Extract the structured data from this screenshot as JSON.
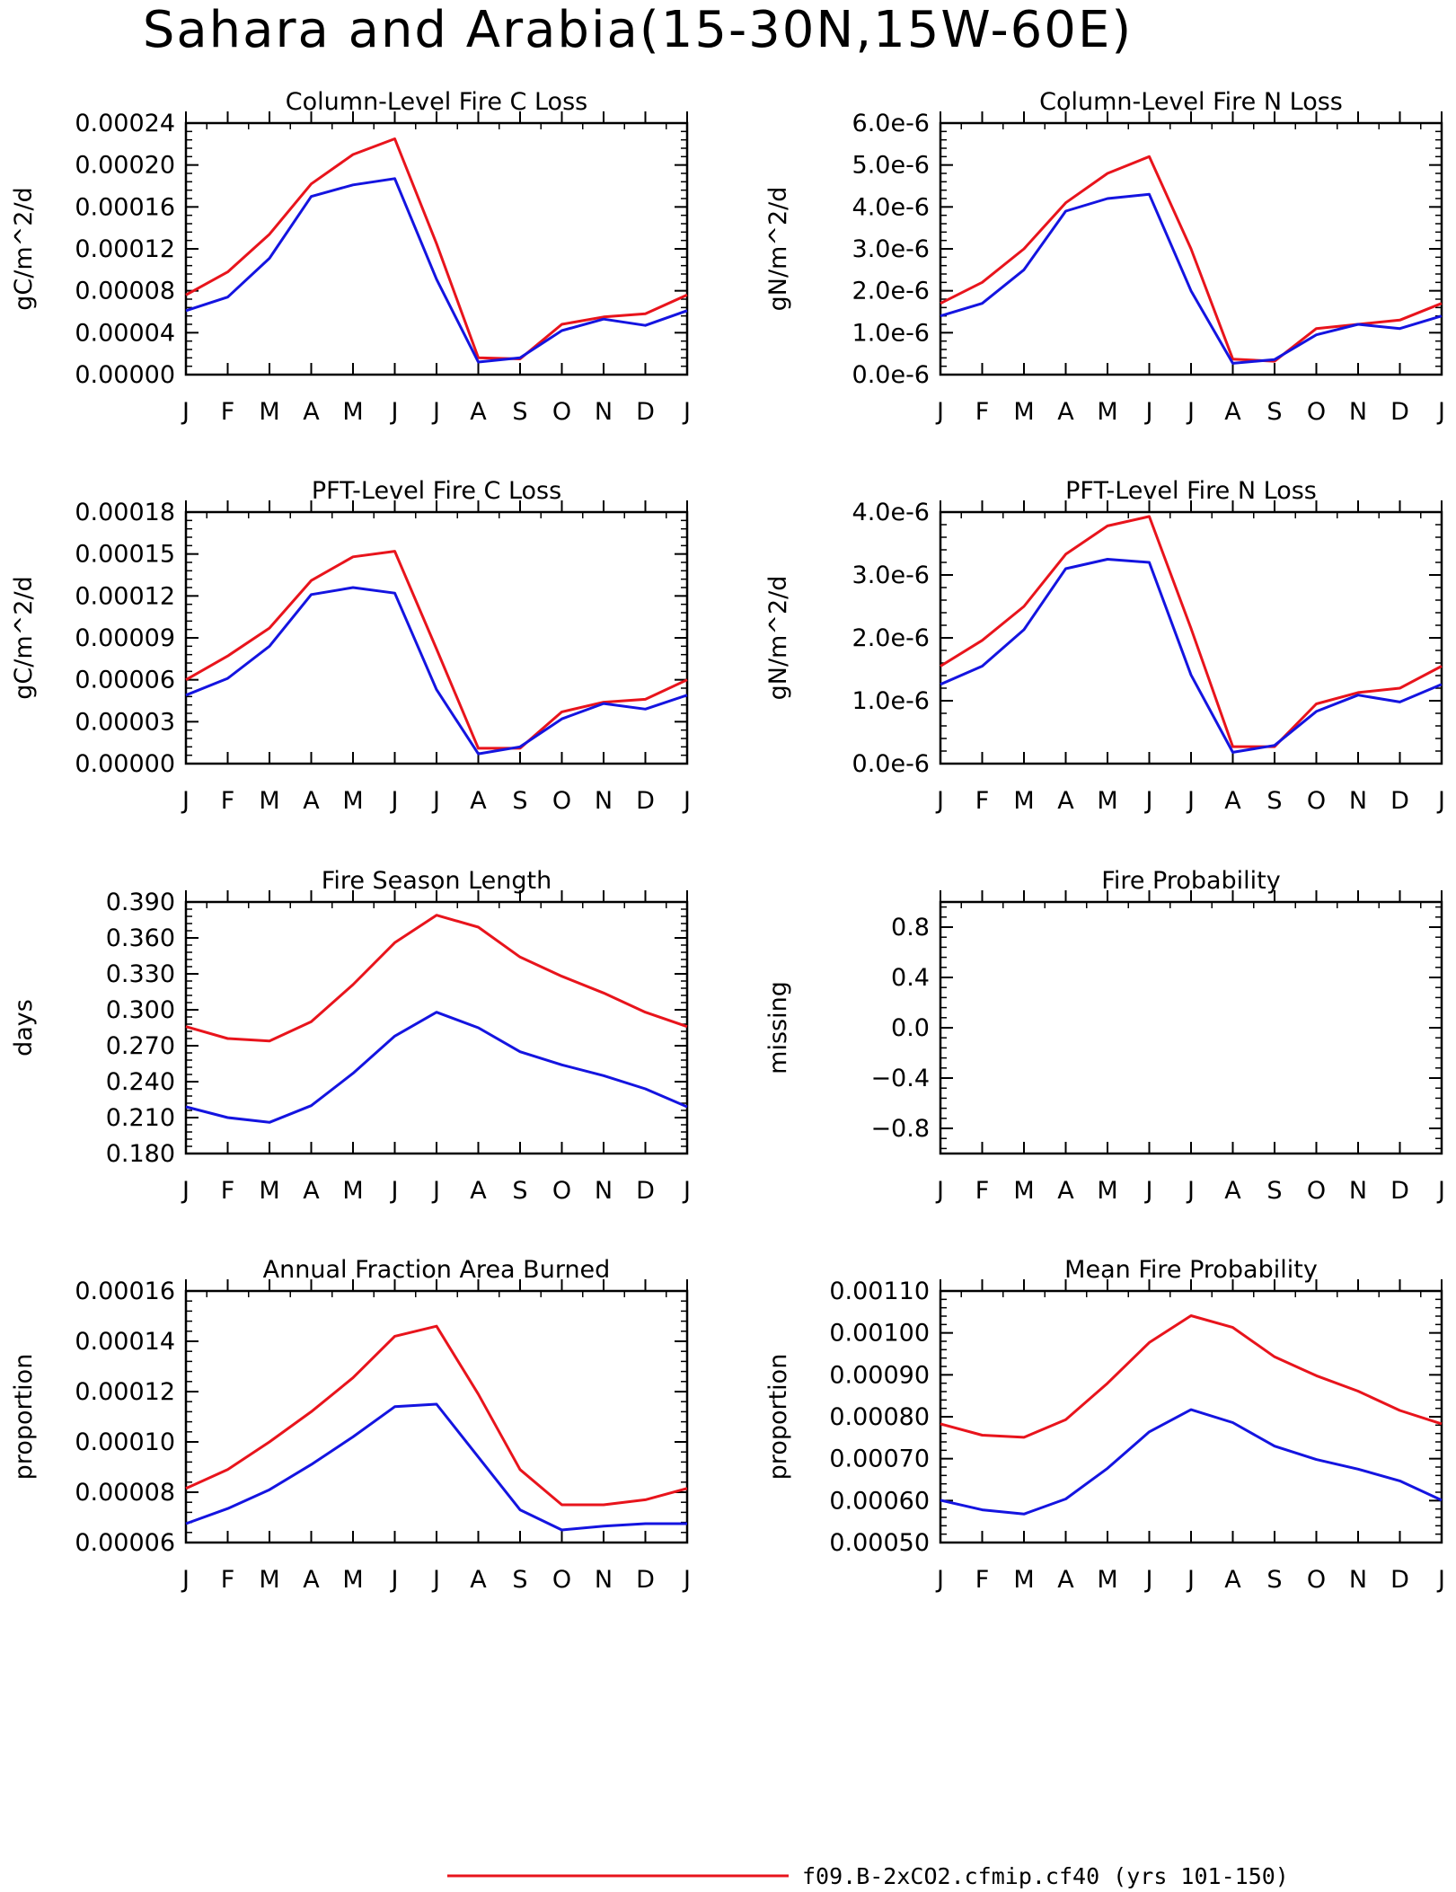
{
  "title": "Sahara and Arabia(15-30N,15W-60E)",
  "colors": {
    "red": "#e8141c",
    "blue": "#1414e0",
    "axes": "#000000"
  },
  "legend": [
    {
      "label": "f09.B-2xCO2.cfmip.cf40 (yrs 101-150)",
      "color": "#e8141c"
    }
  ],
  "chart_data": [
    {
      "type": "line",
      "title": "Column-Level Fire C Loss",
      "ylabel": "gC/m^2/d",
      "categories": [
        "J",
        "F",
        "M",
        "A",
        "M",
        "J",
        "J",
        "A",
        "S",
        "O",
        "N",
        "D",
        "J"
      ],
      "ylim": [
        0,
        0.00024
      ],
      "yticks": [
        0,
        4e-05,
        8e-05,
        0.00012,
        0.00016,
        0.0002,
        0.00024
      ],
      "ytick_labels": [
        "0.00000",
        "0.00004",
        "0.00008",
        "0.00012",
        "0.00016",
        "0.00020",
        "0.00024"
      ],
      "series": [
        {
          "color": "#e8141c",
          "values": [
            7.6e-05,
            9.8e-05,
            0.000134,
            0.000182,
            0.00021,
            0.000225,
            0.000125,
            1.6e-05,
            1.5e-05,
            4.8e-05,
            5.5e-05,
            5.8e-05,
            7.6e-05
          ]
        },
        {
          "color": "#1414e0",
          "values": [
            6.1e-05,
            7.4e-05,
            0.000111,
            0.00017,
            0.000181,
            0.000187,
            9.1e-05,
            1.2e-05,
            1.6e-05,
            4.2e-05,
            5.3e-05,
            4.7e-05,
            6.1e-05
          ]
        }
      ]
    },
    {
      "type": "line",
      "title": "Column-Level Fire N Loss",
      "ylabel": "gN/m^2/d",
      "categories": [
        "J",
        "F",
        "M",
        "A",
        "M",
        "J",
        "J",
        "A",
        "S",
        "O",
        "N",
        "D",
        "J"
      ],
      "ylim": [
        0,
        6e-06
      ],
      "yticks": [
        0,
        1e-06,
        2e-06,
        3e-06,
        4e-06,
        5e-06,
        6e-06
      ],
      "ytick_labels": [
        "0.0e-6",
        "1.0e-6",
        "2.0e-6",
        "3.0e-6",
        "4.0e-6",
        "5.0e-6",
        "6.0e-6"
      ],
      "series": [
        {
          "color": "#e8141c",
          "values": [
            1.7e-06,
            2.2e-06,
            3e-06,
            4.1e-06,
            4.8e-06,
            5.2e-06,
            3e-06,
            3.7e-07,
            3.2e-07,
            1.1e-06,
            1.2e-06,
            1.3e-06,
            1.7e-06
          ]
        },
        {
          "color": "#1414e0",
          "values": [
            1.4e-06,
            1.7e-06,
            2.5e-06,
            3.9e-06,
            4.2e-06,
            4.3e-06,
            2e-06,
            2.7e-07,
            3.6e-07,
            9.5e-07,
            1.2e-06,
            1.1e-06,
            1.4e-06
          ]
        }
      ]
    },
    {
      "type": "line",
      "title": "PFT-Level Fire C Loss",
      "ylabel": "gC/m^2/d",
      "categories": [
        "J",
        "F",
        "M",
        "A",
        "M",
        "J",
        "J",
        "A",
        "S",
        "O",
        "N",
        "D",
        "J"
      ],
      "ylim": [
        0,
        0.00018
      ],
      "yticks": [
        0,
        3e-05,
        6e-05,
        9e-05,
        0.00012,
        0.00015,
        0.00018
      ],
      "ytick_labels": [
        "0.00000",
        "0.00003",
        "0.00006",
        "0.00009",
        "0.00012",
        "0.00015",
        "0.00018"
      ],
      "series": [
        {
          "color": "#e8141c",
          "values": [
            6e-05,
            7.7e-05,
            9.7e-05,
            0.000131,
            0.000148,
            0.000152,
            8.2e-05,
            1.1e-05,
            1.1e-05,
            3.7e-05,
            4.4e-05,
            4.6e-05,
            6e-05
          ]
        },
        {
          "color": "#1414e0",
          "values": [
            4.9e-05,
            6.1e-05,
            8.4e-05,
            0.000121,
            0.000126,
            0.000122,
            5.3e-05,
            7e-06,
            1.2e-05,
            3.2e-05,
            4.3e-05,
            3.9e-05,
            4.9e-05
          ]
        }
      ]
    },
    {
      "type": "line",
      "title": "PFT-Level Fire N Loss",
      "ylabel": "gN/m^2/d",
      "categories": [
        "J",
        "F",
        "M",
        "A",
        "M",
        "J",
        "J",
        "A",
        "S",
        "O",
        "N",
        "D",
        "J"
      ],
      "ylim": [
        0,
        4e-06
      ],
      "yticks": [
        0,
        1e-06,
        2e-06,
        3e-06,
        4e-06
      ],
      "ytick_labels": [
        "0.0e-6",
        "1.0e-6",
        "2.0e-6",
        "3.0e-6",
        "4.0e-6"
      ],
      "series": [
        {
          "color": "#e8141c",
          "values": [
            1.55e-06,
            1.96e-06,
            2.5e-06,
            3.33e-06,
            3.78e-06,
            3.93e-06,
            2.15e-06,
            2.7e-07,
            2.7e-07,
            9.5e-07,
            1.13e-06,
            1.2e-06,
            1.55e-06
          ]
        },
        {
          "color": "#1414e0",
          "values": [
            1.26e-06,
            1.55e-06,
            2.13e-06,
            3.1e-06,
            3.25e-06,
            3.2e-06,
            1.41e-06,
            1.8e-07,
            2.9e-07,
            8.3e-07,
            1.09e-06,
            9.8e-07,
            1.26e-06
          ]
        }
      ]
    },
    {
      "type": "line",
      "title": "Fire Season Length",
      "ylabel": "days",
      "categories": [
        "J",
        "F",
        "M",
        "A",
        "M",
        "J",
        "J",
        "A",
        "S",
        "O",
        "N",
        "D",
        "J"
      ],
      "ylim": [
        0.18,
        0.39
      ],
      "yticks": [
        0.18,
        0.21,
        0.24,
        0.27,
        0.3,
        0.33,
        0.36,
        0.39
      ],
      "ytick_labels": [
        "0.180",
        "0.210",
        "0.240",
        "0.270",
        "0.300",
        "0.330",
        "0.360",
        "0.390"
      ],
      "series": [
        {
          "color": "#e8141c",
          "values": [
            0.286,
            0.276,
            0.274,
            0.29,
            0.321,
            0.356,
            0.379,
            0.369,
            0.344,
            0.328,
            0.314,
            0.298,
            0.286
          ]
        },
        {
          "color": "#1414e0",
          "values": [
            0.219,
            0.21,
            0.206,
            0.22,
            0.247,
            0.278,
            0.298,
            0.285,
            0.265,
            0.254,
            0.245,
            0.234,
            0.219
          ]
        }
      ]
    },
    {
      "type": "line",
      "title": "Fire Probability",
      "ylabel": "missing",
      "categories": [
        "J",
        "F",
        "M",
        "A",
        "M",
        "J",
        "J",
        "A",
        "S",
        "O",
        "N",
        "D",
        "J"
      ],
      "ylim": [
        -1,
        1
      ],
      "yticks": [
        -0.8,
        -0.4,
        0,
        0.4,
        0.8
      ],
      "ytick_labels": [
        "−0.8",
        "−0.4",
        "0.0",
        "0.4",
        "0.8"
      ],
      "series": []
    },
    {
      "type": "line",
      "title": "Annual Fraction Area Burned",
      "ylabel": "proportion",
      "categories": [
        "J",
        "F",
        "M",
        "A",
        "M",
        "J",
        "J",
        "A",
        "S",
        "O",
        "N",
        "D",
        "J"
      ],
      "ylim": [
        6e-05,
        0.00016
      ],
      "yticks": [
        6e-05,
        8e-05,
        0.0001,
        0.00012,
        0.00014,
        0.00016
      ],
      "ytick_labels": [
        "0.00006",
        "0.00008",
        "0.00010",
        "0.00012",
        "0.00014",
        "0.00016"
      ],
      "series": [
        {
          "color": "#e8141c",
          "values": [
            8.15e-05,
            8.9e-05,
            0.0001,
            0.000112,
            0.0001255,
            0.000142,
            0.000146,
            0.000119,
            8.9e-05,
            7.5e-05,
            7.5e-05,
            7.7e-05,
            8.15e-05
          ]
        },
        {
          "color": "#1414e0",
          "values": [
            6.75e-05,
            7.35e-05,
            8.1e-05,
            9.1e-05,
            0.000102,
            0.000114,
            0.000115,
            9.4e-05,
            7.3e-05,
            6.5e-05,
            6.65e-05,
            6.75e-05,
            6.75e-05
          ]
        }
      ]
    },
    {
      "type": "line",
      "title": "Mean Fire Probability",
      "ylabel": "proportion",
      "categories": [
        "J",
        "F",
        "M",
        "A",
        "M",
        "J",
        "J",
        "A",
        "S",
        "O",
        "N",
        "D",
        "J"
      ],
      "ylim": [
        0.0005,
        0.0011
      ],
      "yticks": [
        0.0005,
        0.0006,
        0.0007,
        0.0008,
        0.0009,
        0.001,
        0.0011
      ],
      "ytick_labels": [
        "0.00050",
        "0.00060",
        "0.00070",
        "0.00080",
        "0.00090",
        "0.00100",
        "0.00110"
      ],
      "series": [
        {
          "color": "#e8141c",
          "values": [
            0.000783,
            0.000756,
            0.000751,
            0.000793,
            0.00088,
            0.000977,
            0.001041,
            0.001013,
            0.000943,
            0.000898,
            0.000861,
            0.000815,
            0.000783
          ]
        },
        {
          "color": "#1414e0",
          "values": [
            0.000601,
            0.000578,
            0.000568,
            0.000604,
            0.000677,
            0.000764,
            0.000817,
            0.000786,
            0.00073,
            0.000698,
            0.000675,
            0.000647,
            0.000601
          ]
        }
      ]
    }
  ]
}
